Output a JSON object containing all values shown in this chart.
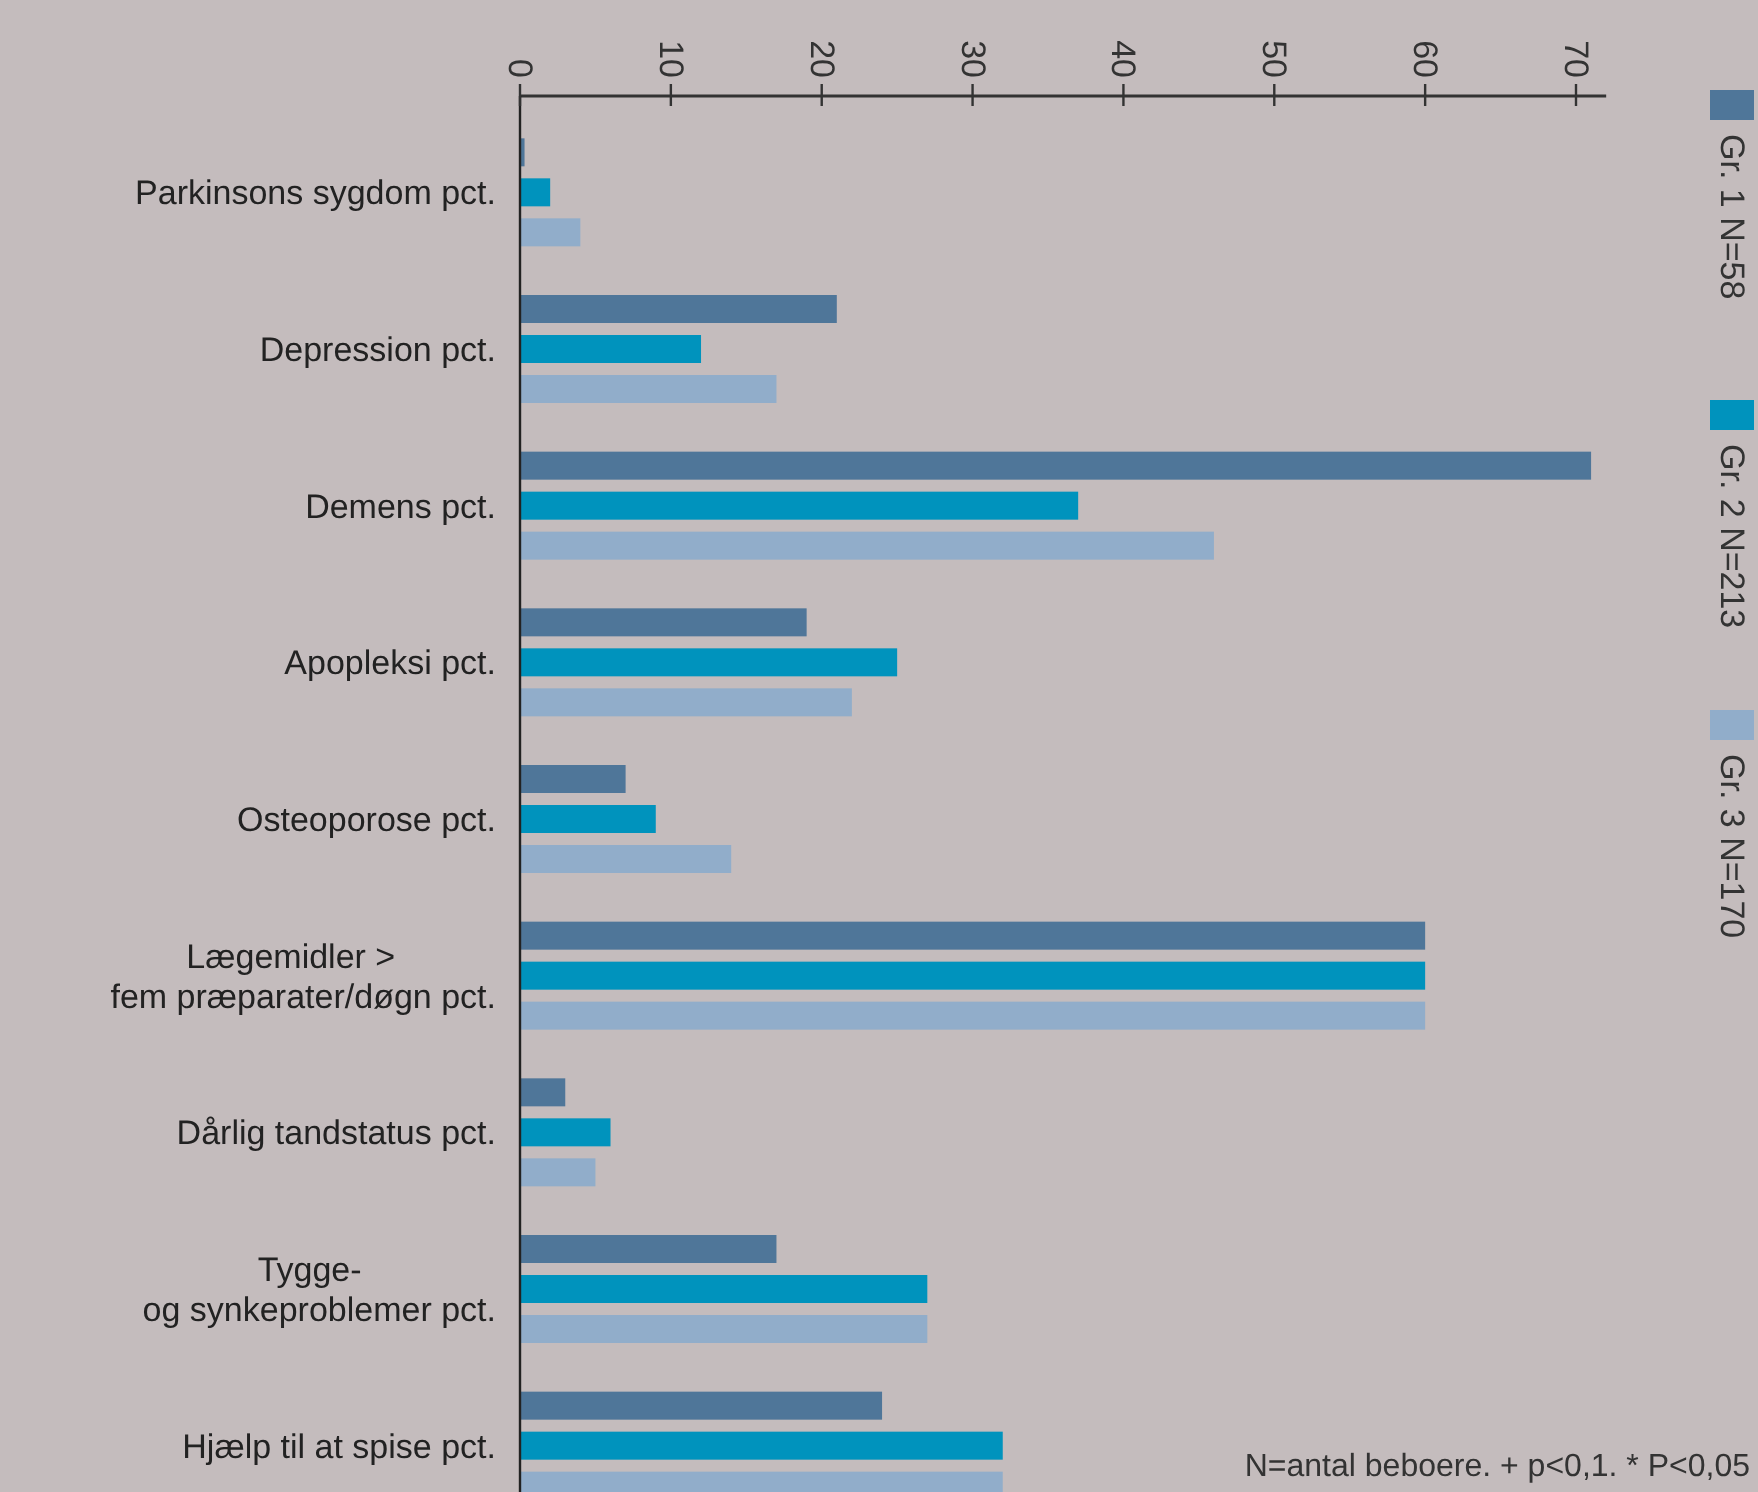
{
  "chart_data": {
    "type": "bar",
    "orientation": "horizontal",
    "categories": [
      "Parkinsons sygdom pct.",
      "Depression pct.",
      "Demens pct.",
      "Apopleksi pct.",
      "Osteoporose pct.",
      "Lægemidler >\nfem præparater/døgn pct.",
      "Dårlig tandstatus pct.",
      "Tygge-\nog synkeproblemer pct.",
      "Hjælp til at spise pct."
    ],
    "series": [
      {
        "name": "Gr. 1 N=58",
        "color": "#4f7699",
        "values": [
          0.3,
          21,
          71,
          19,
          7,
          60,
          3,
          17,
          24
        ]
      },
      {
        "name": "Gr. 2 N=213",
        "color": "#0093bd",
        "values": [
          2,
          12,
          37,
          25,
          9,
          60,
          6,
          27,
          32
        ]
      },
      {
        "name": "Gr. 3 N=170",
        "color": "#91adca",
        "values": [
          4,
          17,
          46,
          22,
          14,
          60,
          5,
          27,
          32
        ]
      }
    ],
    "xlim": [
      0,
      72
    ],
    "xticks": [
      0,
      10,
      20,
      30,
      40,
      50,
      60,
      70
    ],
    "grid": false,
    "legend": "right",
    "annotations": [
      "N=antal beboere. + p<0,1. * P<0,05"
    ]
  }
}
